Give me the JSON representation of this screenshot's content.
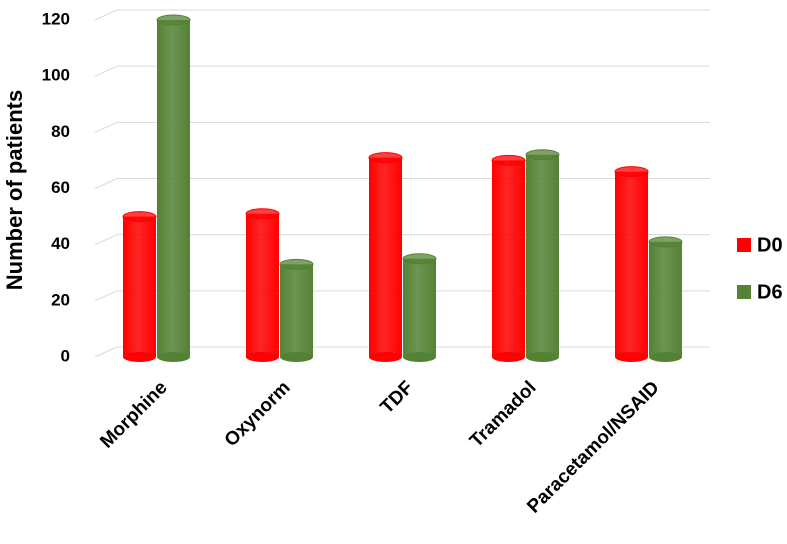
{
  "chart_data": {
    "type": "bar3d",
    "y_label": "Number of patients",
    "categories": [
      "Morphine",
      "Oxynorm",
      "TDF",
      "Tramadol",
      "Paracetamol/NSAID"
    ],
    "series": [
      {
        "name": "D0",
        "color": "#ff0000",
        "values": [
          50,
          51,
          71,
          70,
          66
        ]
      },
      {
        "name": "D6",
        "color": "#548235",
        "values": [
          120,
          33,
          35,
          72,
          41
        ]
      }
    ],
    "ylim": [
      0,
      120
    ],
    "yticks": [
      0,
      20,
      40,
      60,
      80,
      100,
      120
    ],
    "grid": true,
    "legend": "right"
  }
}
